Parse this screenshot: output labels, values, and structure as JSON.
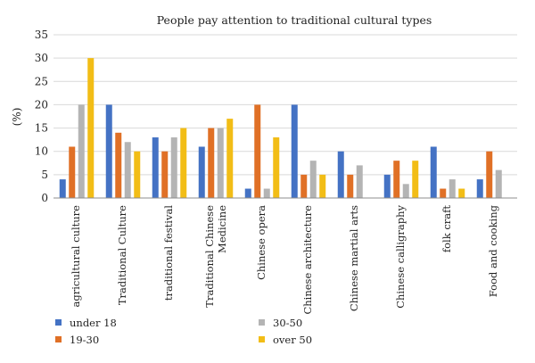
{
  "chart_data": {
    "type": "bar",
    "title": "People pay attention to traditional cultural types",
    "ylabel": "(%)",
    "ylim": [
      0,
      35
    ],
    "yticks": [
      0,
      5,
      10,
      15,
      20,
      25,
      30,
      35
    ],
    "grid": true,
    "legend_position": "bottom",
    "categories": [
      "agricultural culture",
      "Traditional Culture",
      "traditional festival",
      "Traditional Chinese Medicine",
      "Chinese opera",
      "Chinese architecture",
      "Chinese martial arts",
      "Chinese calligraphy",
      "folk craft",
      "Food and cooking"
    ],
    "series": [
      {
        "name": "under 18",
        "color": "#4472c4",
        "values": [
          4,
          20,
          13,
          11,
          2,
          20,
          10,
          5,
          11,
          4
        ]
      },
      {
        "name": "19-30",
        "color": "#e07026",
        "values": [
          11,
          14,
          10,
          15,
          20,
          5,
          5,
          8,
          2,
          10
        ]
      },
      {
        "name": "30-50",
        "color": "#b4b4b4",
        "values": [
          20,
          12,
          13,
          15,
          2,
          8,
          7,
          3,
          4,
          6
        ]
      },
      {
        "name": "over 50",
        "color": "#f2bd16",
        "values": [
          30,
          10,
          15,
          17,
          13,
          5,
          0,
          8,
          2,
          0
        ]
      }
    ]
  }
}
